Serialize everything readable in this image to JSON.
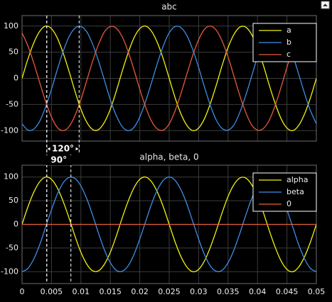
{
  "chart_data": [
    {
      "type": "line",
      "title": "abc",
      "x": [
        0,
        0.001,
        0.002,
        0.003,
        0.004,
        0.005,
        0.006,
        0.007,
        0.008,
        0.009,
        0.01,
        0.011,
        0.012,
        0.013,
        0.014,
        0.015,
        0.016,
        0.017,
        0.018,
        0.019,
        0.02,
        0.021,
        0.022,
        0.023,
        0.024,
        0.025,
        0.026,
        0.027,
        0.028,
        0.029,
        0.03,
        0.031,
        0.032,
        0.033,
        0.034,
        0.035,
        0.036,
        0.037,
        0.038,
        0.039,
        0.04,
        0.041,
        0.042,
        0.043,
        0.044,
        0.045,
        0.046,
        0.047,
        0.048,
        0.049,
        0.05
      ],
      "xlim": [
        0,
        0.05
      ],
      "xticks": [
        0,
        0.005,
        0.01,
        0.015,
        0.02,
        0.025,
        0.03,
        0.035,
        0.04,
        0.045,
        0.05
      ],
      "show_xtick_labels": false,
      "ylim": [
        -120,
        120
      ],
      "yticks": [
        -100,
        -50,
        0,
        50,
        100
      ],
      "grid": true,
      "legend": "upper right",
      "series": [
        {
          "name": "a",
          "color": "#f2f20d",
          "values": [
            0,
            37,
            68,
            90,
            100,
            95,
            77,
            48,
            13,
            -25,
            -59,
            -84,
            -98,
            -98,
            -84,
            -59,
            -25,
            13,
            48,
            77,
            95,
            100,
            90,
            68,
            37,
            0,
            -37,
            -68,
            -90,
            -100,
            -95,
            -77,
            -48,
            -13,
            25,
            59,
            84,
            98,
            98,
            84,
            59,
            25,
            -13,
            -48,
            -77,
            -95,
            -100,
            -90,
            -68,
            -37,
            0
          ]
        },
        {
          "name": "b",
          "color": "#3d8ee6",
          "values": [
            -87,
            -99,
            -97,
            -82,
            -55,
            -21,
            17,
            52,
            80,
            96,
            99,
            89,
            65,
            33,
            -4,
            -41,
            -71,
            -92,
            -100,
            -94,
            -74,
            -44,
            -8,
            29,
            62,
            87,
            99,
            97,
            82,
            55,
            21,
            -17,
            -52,
            -80,
            -96,
            -99,
            -89,
            -65,
            -33,
            4,
            41,
            71,
            92,
            100,
            94,
            74,
            44,
            8,
            -29,
            -62,
            -87
          ]
        },
        {
          "name": "c",
          "color": "#e8593b",
          "values": [
            87,
            62,
            29,
            -8,
            -44,
            -74,
            -94,
            -100,
            -92,
            -71,
            -41,
            -4,
            33,
            65,
            89,
            99,
            96,
            80,
            52,
            17,
            -21,
            -55,
            -82,
            -97,
            -99,
            -87,
            -62,
            -29,
            8,
            44,
            74,
            94,
            100,
            92,
            71,
            41,
            4,
            -33,
            -65,
            -89,
            -99,
            -96,
            -80,
            -52,
            -17,
            21,
            55,
            82,
            97,
            99,
            87
          ]
        }
      ],
      "annotations": [
        {
          "text": "120°",
          "x": [
            0.0042,
            0.0097
          ]
        },
        {
          "text": "90°",
          "x": [
            0.0042,
            0.0083
          ]
        }
      ]
    },
    {
      "type": "line",
      "title": "alpha, beta, 0",
      "x": [
        0,
        0.001,
        0.002,
        0.003,
        0.004,
        0.005,
        0.006,
        0.007,
        0.008,
        0.009,
        0.01,
        0.011,
        0.012,
        0.013,
        0.014,
        0.015,
        0.016,
        0.017,
        0.018,
        0.019,
        0.02,
        0.021,
        0.022,
        0.023,
        0.024,
        0.025,
        0.026,
        0.027,
        0.028,
        0.029,
        0.03,
        0.031,
        0.032,
        0.033,
        0.034,
        0.035,
        0.036,
        0.037,
        0.038,
        0.039,
        0.04,
        0.041,
        0.042,
        0.043,
        0.044,
        0.045,
        0.046,
        0.047,
        0.048,
        0.049,
        0.05
      ],
      "xlim": [
        0,
        0.05
      ],
      "xticks": [
        0,
        0.005,
        0.01,
        0.015,
        0.02,
        0.025,
        0.03,
        0.035,
        0.04,
        0.045,
        0.05
      ],
      "show_xtick_labels": true,
      "ylim": [
        -125,
        125
      ],
      "yticks": [
        -100,
        -50,
        0,
        50,
        100
      ],
      "grid": true,
      "legend": "upper right",
      "series": [
        {
          "name": "alpha",
          "color": "#f2f20d",
          "values": [
            0,
            37,
            68,
            90,
            100,
            95,
            77,
            48,
            13,
            -25,
            -59,
            -84,
            -98,
            -98,
            -84,
            -59,
            -25,
            13,
            48,
            77,
            95,
            100,
            90,
            68,
            37,
            0,
            -37,
            -68,
            -90,
            -100,
            -95,
            -77,
            -48,
            -13,
            25,
            59,
            84,
            98,
            98,
            84,
            59,
            25,
            -13,
            -48,
            -77,
            -95,
            -100,
            -90,
            -68,
            -37,
            0
          ]
        },
        {
          "name": "beta",
          "color": "#3d8ee6",
          "values": [
            -100,
            -93,
            -73,
            -43,
            -6,
            31,
            64,
            88,
            99,
            97,
            81,
            54,
            19,
            -19,
            -54,
            -81,
            -97,
            -99,
            -88,
            -64,
            -31,
            6,
            43,
            73,
            93,
            100,
            93,
            73,
            43,
            6,
            -31,
            -64,
            -88,
            -99,
            -97,
            -81,
            -54,
            -19,
            19,
            54,
            81,
            97,
            99,
            88,
            64,
            31,
            -6,
            -43,
            -73,
            -93,
            -100
          ]
        },
        {
          "name": "0",
          "color": "#e8603c",
          "values": [
            0,
            0,
            0,
            0,
            0,
            0,
            0,
            0,
            0,
            0,
            0,
            0,
            0,
            0,
            0,
            0,
            0,
            0,
            0,
            0,
            0,
            0,
            0,
            0,
            0,
            0,
            0,
            0,
            0,
            0,
            0,
            0,
            0,
            0,
            0,
            0,
            0,
            0,
            0,
            0,
            0,
            0,
            0,
            0,
            0,
            0,
            0,
            0,
            0,
            0,
            0
          ]
        }
      ]
    }
  ]
}
